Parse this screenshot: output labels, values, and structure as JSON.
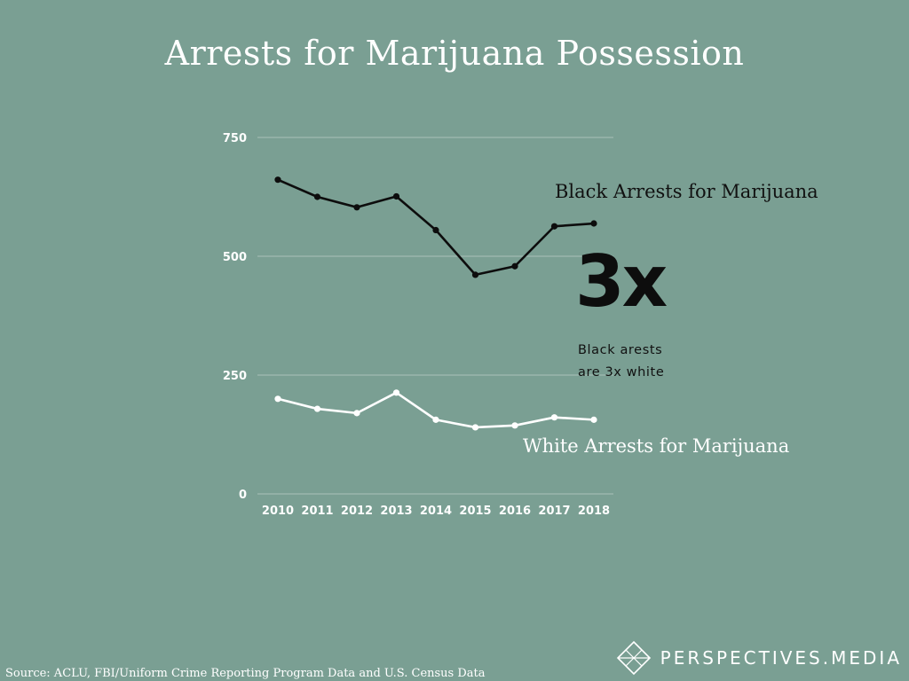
{
  "title": "Arrests for Marijuana Possession",
  "chart_data": {
    "type": "line",
    "title": "Arrests for Marijuana Possession",
    "x": [
      "2010",
      "2011",
      "2012",
      "2013",
      "2014",
      "2015",
      "2016",
      "2017",
      "2018"
    ],
    "ylim": [
      0,
      750
    ],
    "yticks": [
      0,
      250,
      500,
      750
    ],
    "grid": true,
    "series": [
      {
        "name": "Black Arrests for Marijuana",
        "color": "#0d0d0d",
        "values": [
          661,
          625,
          603,
          626,
          555,
          461,
          479,
          563,
          569
        ]
      },
      {
        "name": "White Arrests for Marijuana",
        "color": "#ffffff",
        "values": [
          200,
          179,
          170,
          213,
          156,
          140,
          144,
          161,
          156
        ]
      }
    ]
  },
  "callout": {
    "ratio": "3x",
    "note_line1": "Black arests",
    "note_line2": "are 3x white"
  },
  "source": "Source:  ACLU, FBI/Uniform Crime Reporting Program Data and U.S. Census Data",
  "brand": {
    "name_bold": "PERSPECTIVES",
    "name_light": ".MEDIA"
  }
}
